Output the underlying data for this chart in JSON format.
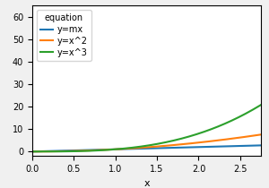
{
  "title": "",
  "xlabel": "x",
  "ylabel": "",
  "xlim": [
    0.0,
    2.75
  ],
  "ylim": [
    -2,
    65
  ],
  "x_start": 0.0,
  "x_end": 2.75,
  "num_points": 300,
  "slope": 1,
  "legend_title": "equation",
  "legend_labels": [
    "y=mx",
    "y=x^2",
    "y=x^3"
  ],
  "line_colors": [
    "#1f77b4",
    "#ff7f0e",
    "#2ca02c"
  ],
  "yticks": [
    0,
    10,
    20,
    30,
    40,
    50,
    60
  ],
  "xticks": [
    0.0,
    0.5,
    1.0,
    1.5,
    2.0,
    2.5
  ],
  "legend_fontsize": 7,
  "axis_label_fontsize": 8,
  "tick_fontsize": 7,
  "legend_title_fontsize": 7,
  "figsize": [
    3.0,
    2.1
  ],
  "dpi": 100
}
